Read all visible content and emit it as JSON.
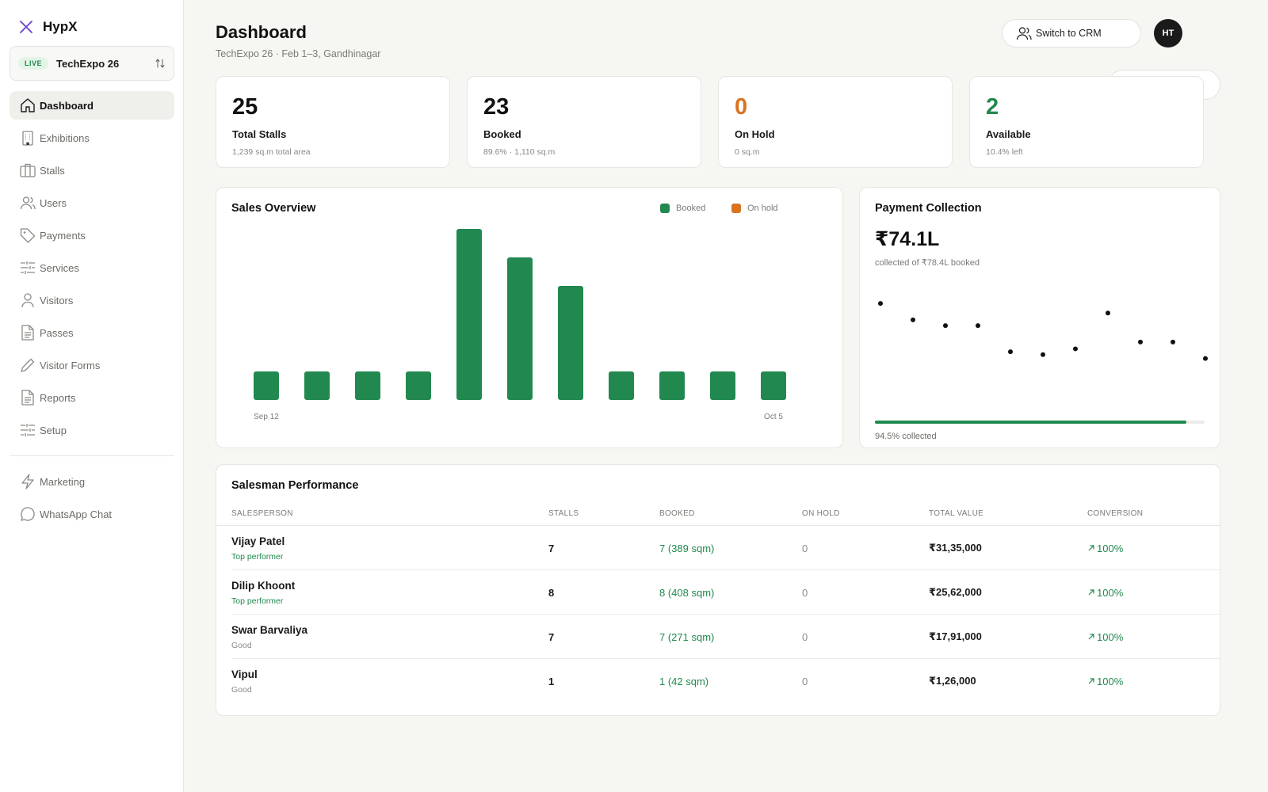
{
  "app": {
    "name": "HypX"
  },
  "event": {
    "badge": "LIVE",
    "name": "TechExpo 26"
  },
  "nav": {
    "items": [
      {
        "label": "Dashboard",
        "icon": "home-icon",
        "active": true
      },
      {
        "label": "Exhibitions",
        "icon": "building-icon"
      },
      {
        "label": "Stalls",
        "icon": "briefcase-icon"
      },
      {
        "label": "Users",
        "icon": "users-icon"
      },
      {
        "label": "Payments",
        "icon": "tag-icon"
      },
      {
        "label": "Services",
        "icon": "sliders-icon"
      },
      {
        "label": "Visitors",
        "icon": "user-icon"
      },
      {
        "label": "Passes",
        "icon": "document-icon"
      },
      {
        "label": "Visitor Forms",
        "icon": "pencil-icon"
      },
      {
        "label": "Reports",
        "icon": "document-icon"
      },
      {
        "label": "Setup",
        "icon": "sliders-icon"
      }
    ],
    "secondary": [
      {
        "label": "Marketing",
        "icon": "bolt-icon"
      },
      {
        "label": "WhatsApp Chat",
        "icon": "chat-icon"
      }
    ]
  },
  "header": {
    "title": "Dashboard",
    "subtitle": "TechExpo 26 · Feb 1–3, Gandhinagar",
    "crm_label": "Switch to CRM",
    "avatar_initials": "HT"
  },
  "stats": [
    {
      "value": "25",
      "label": "Total Stalls",
      "sub": "1,239 sq.m total area",
      "color": "#111111"
    },
    {
      "value": "23",
      "label": "Booked",
      "sub": "89.6% · 1,110 sq.m",
      "color": "#111111"
    },
    {
      "value": "0",
      "label": "On Hold",
      "sub": "0 sq.m",
      "color": "#d9731f"
    },
    {
      "value": "2",
      "label": "Available",
      "sub": "10.4% left",
      "color": "#21894f"
    }
  ],
  "sales": {
    "title": "Sales Overview",
    "legend": [
      {
        "name": "Booked",
        "color": "#21894f"
      },
      {
        "name": "On hold",
        "color": "#d9731f"
      }
    ]
  },
  "payment": {
    "title": "Payment Collection",
    "amount": "₹74.1L",
    "sub": "collected of ₹78.4L booked",
    "progress": 0.945,
    "progress_label": "94.5% collected"
  },
  "chart_data": [
    {
      "type": "bar",
      "title": "Sales Overview",
      "categories": [
        "Sep 12",
        "",
        "",
        "",
        "",
        "",
        "",
        "",
        "",
        "",
        "Oct 5"
      ],
      "series": [
        {
          "name": "Booked",
          "values": [
            1,
            1,
            1,
            1,
            6,
            5,
            4,
            1,
            1,
            1,
            1
          ],
          "color": "#21894f"
        },
        {
          "name": "On hold",
          "values": [
            0,
            0,
            0,
            0,
            0,
            0,
            0,
            0,
            0,
            0,
            0
          ],
          "color": "#d9731f"
        }
      ],
      "ylim": [
        0,
        6
      ],
      "grid": false,
      "legend": "top-right"
    },
    {
      "type": "scatter",
      "title": "Payment Collection",
      "x": [
        1,
        2,
        3,
        4,
        5,
        6,
        7,
        8,
        9,
        10,
        11
      ],
      "y": [
        9.5,
        7.8,
        7.2,
        7.2,
        4.5,
        4.2,
        4.8,
        8.5,
        5.5,
        5.5,
        3.8
      ],
      "ylim": [
        0,
        10
      ],
      "grid": false
    }
  ],
  "salesmen": {
    "title": "Salesman Performance",
    "columns": [
      "SALESPERSON",
      "STALLS",
      "BOOKED",
      "ON HOLD",
      "TOTAL VALUE",
      "CONVERSION"
    ],
    "rows": [
      {
        "name": "Vijay Patel",
        "tag": "Top performer",
        "tier": "top",
        "stalls": "7",
        "booked": "7 (389 sqm)",
        "on_hold": "0",
        "value": "₹31,35,000",
        "conversion": "100%"
      },
      {
        "name": "Dilip Khoont",
        "tag": "Top performer",
        "tier": "top",
        "stalls": "8",
        "booked": "8 (408 sqm)",
        "on_hold": "0",
        "value": "₹25,62,000",
        "conversion": "100%"
      },
      {
        "name": "Swar Barvaliya",
        "tag": "Good",
        "tier": "good",
        "stalls": "7",
        "booked": "7 (271 sqm)",
        "on_hold": "0",
        "value": "₹17,91,000",
        "conversion": "100%"
      },
      {
        "name": "Vipul",
        "tag": "Good",
        "tier": "good",
        "stalls": "1",
        "booked": "1 (42 sqm)",
        "on_hold": "0",
        "value": "₹1,26,000",
        "conversion": "100%"
      }
    ]
  }
}
